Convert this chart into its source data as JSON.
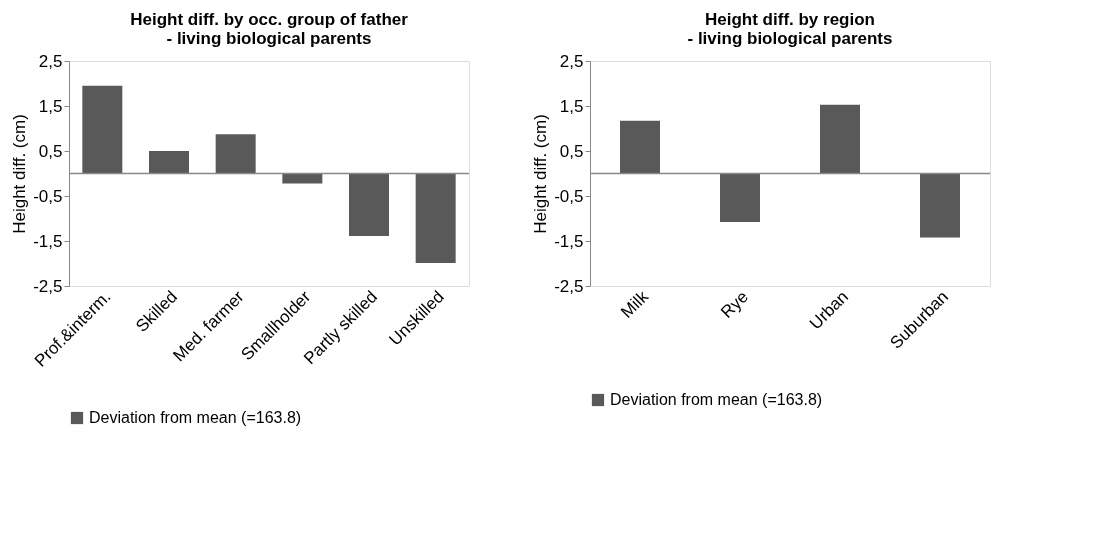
{
  "chart_data": [
    {
      "type": "bar",
      "title": "Height diff. by occ. group of father\n- living biological parents",
      "ylabel": "Height diff. (cm)",
      "categories": [
        "Prof.&interm.",
        "Skilled",
        "Med. farmer",
        "Smallholder",
        "Partly skilled",
        "Unskilled"
      ],
      "series": [
        {
          "name": "Deviation from mean (=163.8)",
          "color": "#595959",
          "values": [
            1.95,
            0.5,
            0.87,
            -0.22,
            -1.39,
            -1.99
          ]
        }
      ],
      "ylim": [
        -2.5,
        2.5
      ],
      "yticks": [
        {
          "value": -2.5,
          "label": "-2,5"
        },
        {
          "value": -1.5,
          "label": "-1,5"
        },
        {
          "value": -0.5,
          "label": "-0,5"
        },
        {
          "value": 0.5,
          "label": "0,5"
        },
        {
          "value": 1.5,
          "label": "1,5"
        },
        {
          "value": 2.5,
          "label": "2,5"
        }
      ],
      "legend": "bottom",
      "grid": false
    },
    {
      "type": "bar",
      "title": "Height diff. by region\n- living biological parents",
      "ylabel": "Height diff. (cm)",
      "categories": [
        "Milk",
        "Rye",
        "Urban",
        "Suburban"
      ],
      "series": [
        {
          "name": "Deviation from mean (=163.8)",
          "color": "#595959",
          "values": [
            1.17,
            -1.08,
            1.53,
            -1.42
          ]
        }
      ],
      "ylim": [
        -2.5,
        2.5
      ],
      "yticks": [
        {
          "value": -2.5,
          "label": "-2,5"
        },
        {
          "value": -1.5,
          "label": "-1,5"
        },
        {
          "value": -0.5,
          "label": "-0,5"
        },
        {
          "value": 0.5,
          "label": "0,5"
        },
        {
          "value": 1.5,
          "label": "1,5"
        },
        {
          "value": 2.5,
          "label": "2,5"
        }
      ],
      "legend": "bottom",
      "grid": false
    }
  ]
}
